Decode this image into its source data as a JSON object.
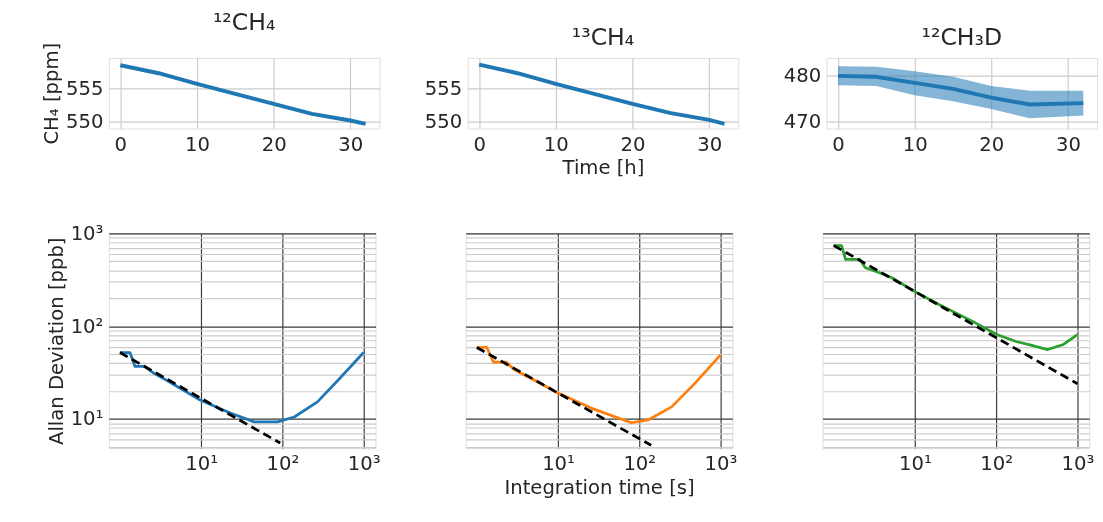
{
  "chart_data": [
    {
      "type": "line",
      "title": "¹²CH₄",
      "ylabel": "CH₄ [ppm]",
      "xlim": [
        -1.5,
        33.8
      ],
      "ylim": [
        549,
        559.6
      ],
      "xticks": [
        0,
        10,
        20,
        30
      ],
      "yticks": [
        550,
        555
      ],
      "grid": true,
      "series": [
        {
          "color": "#1f77b4",
          "x": [
            0,
            5,
            10,
            15,
            20,
            25,
            30,
            32
          ],
          "values": [
            558.5,
            557.3,
            555.7,
            554.2,
            552.7,
            551.2,
            550.2,
            549.7
          ]
        }
      ]
    },
    {
      "type": "line",
      "title": "¹³CH₄",
      "xlabel": "Time [h]",
      "xlim": [
        -1.5,
        33.8
      ],
      "ylim": [
        549,
        559.6
      ],
      "xticks": [
        0,
        10,
        20,
        30
      ],
      "yticks": [
        550,
        555
      ],
      "grid": true,
      "series": [
        {
          "color": "#1f77b4",
          "x": [
            0,
            5,
            10,
            15,
            20,
            25,
            30,
            32
          ],
          "values": [
            558.6,
            557.3,
            555.7,
            554.2,
            552.7,
            551.3,
            550.3,
            549.7
          ]
        }
      ]
    },
    {
      "type": "line",
      "title": "¹²CH₃D",
      "xlim": [
        -1.5,
        33.8
      ],
      "ylim": [
        468.6,
        483.9
      ],
      "xticks": [
        0,
        10,
        20,
        30
      ],
      "yticks": [
        470,
        480
      ],
      "grid": true,
      "series": [
        {
          "color": "#1f77b4",
          "x": [
            0,
            5,
            10,
            15,
            20,
            25,
            32
          ],
          "values": [
            480,
            479.8,
            478.5,
            477.2,
            475.3,
            473.8,
            474.1
          ],
          "lower": [
            478,
            477.8,
            475.8,
            474.5,
            472.8,
            470.8,
            471.4
          ],
          "upper": [
            482.1,
            482,
            481,
            479.8,
            477.8,
            476.8,
            476.8
          ]
        }
      ]
    },
    {
      "type": "line",
      "ylabel": "Allan Deviation [ppb]",
      "log": "xy",
      "xlim": [
        0.73,
        1400
      ],
      "ylim": [
        4.85,
        1000
      ],
      "grid": true,
      "xticks": [
        {
          "value": 10,
          "label": "10¹"
        },
        {
          "value": 100,
          "label": "10²"
        },
        {
          "value": 1000,
          "label": "10³"
        }
      ],
      "yticks": [
        {
          "value": 5,
          "label": null
        },
        {
          "value": 6,
          "label": null
        },
        {
          "value": 7,
          "label": null
        },
        {
          "value": 8,
          "label": null
        },
        {
          "value": 9,
          "label": null
        },
        {
          "value": 10,
          "label": "10¹"
        },
        {
          "value": 20,
          "label": null
        },
        {
          "value": 30,
          "label": null
        },
        {
          "value": 40,
          "label": null
        },
        {
          "value": 50,
          "label": null
        },
        {
          "value": 60,
          "label": null
        },
        {
          "value": 70,
          "label": null
        },
        {
          "value": 80,
          "label": null
        },
        {
          "value": 90,
          "label": null
        },
        {
          "value": 100,
          "label": "10²"
        },
        {
          "value": 200,
          "label": null
        },
        {
          "value": 300,
          "label": null
        },
        {
          "value": 400,
          "label": null
        },
        {
          "value": 500,
          "label": null
        },
        {
          "value": 600,
          "label": null
        },
        {
          "value": 700,
          "label": null
        },
        {
          "value": 800,
          "label": null
        },
        {
          "value": 900,
          "label": null
        },
        {
          "value": 1000,
          "label": "10³"
        }
      ],
      "series": [
        {
          "color": "#1f77b4",
          "x": [
            1,
            1.33,
            1.53,
            1.98,
            2.63,
            3.8,
            9.7,
            22.8,
            45,
            87,
            140,
            270,
            520,
            1000
          ],
          "values": [
            52,
            52,
            37,
            37,
            31,
            26,
            16,
            11.6,
            9.3,
            9.3,
            10.5,
            15.3,
            28,
            52
          ]
        },
        {
          "color": "#000000",
          "line_style": "dashed",
          "x": [
            1,
            94
          ],
          "values": [
            52,
            5.5
          ]
        }
      ]
    },
    {
      "type": "line",
      "xlabel": "Integration time [s]",
      "log": "xy",
      "xlim": [
        0.73,
        1400
      ],
      "ylim": [
        4.85,
        1000
      ],
      "grid": true,
      "tick_labels": "x",
      "xticks": [
        {
          "value": 10,
          "label": "10¹"
        },
        {
          "value": 100,
          "label": "10²"
        },
        {
          "value": 1000,
          "label": "10³"
        }
      ],
      "yticks": [
        {
          "value": 5,
          "label": null
        },
        {
          "value": 6,
          "label": null
        },
        {
          "value": 7,
          "label": null
        },
        {
          "value": 8,
          "label": null
        },
        {
          "value": 9,
          "label": null
        },
        10,
        {
          "value": 20,
          "label": null
        },
        {
          "value": 30,
          "label": null
        },
        {
          "value": 40,
          "label": null
        },
        {
          "value": 50,
          "label": null
        },
        {
          "value": 60,
          "label": null
        },
        {
          "value": 70,
          "label": null
        },
        {
          "value": 80,
          "label": null
        },
        {
          "value": 90,
          "label": null
        },
        100,
        {
          "value": 200,
          "label": null
        },
        {
          "value": 300,
          "label": null
        },
        {
          "value": 400,
          "label": null
        },
        {
          "value": 500,
          "label": null
        },
        {
          "value": 600,
          "label": null
        },
        {
          "value": 700,
          "label": null
        },
        {
          "value": 800,
          "label": null
        },
        {
          "value": 900,
          "label": null
        },
        1000
      ],
      "series": [
        {
          "color": "#ff7f0e",
          "x": [
            1,
            1.33,
            1.6,
            2.3,
            2.9,
            5.2,
            10,
            25.5,
            80,
            130,
            250,
            490,
            1000
          ],
          "values": [
            59,
            59,
            41,
            41,
            34,
            26,
            19,
            13.1,
            9.1,
            9.8,
            13.5,
            24.5,
            49
          ]
        },
        {
          "color": "#000000",
          "line_style": "dashed",
          "x": [
            1,
            140
          ],
          "values": [
            59,
            5.2
          ]
        }
      ]
    },
    {
      "type": "line",
      "log": "xy",
      "xlim": [
        0.73,
        1400
      ],
      "ylim": [
        4.85,
        1000
      ],
      "grid": true,
      "tick_labels": "x",
      "xticks": [
        {
          "value": 10,
          "label": "10¹"
        },
        {
          "value": 100,
          "label": "10²"
        },
        {
          "value": 1000,
          "label": "10³"
        }
      ],
      "yticks": [
        {
          "value": 5,
          "label": null
        },
        {
          "value": 6,
          "label": null
        },
        {
          "value": 7,
          "label": null
        },
        {
          "value": 8,
          "label": null
        },
        {
          "value": 9,
          "label": null
        },
        10,
        {
          "value": 20,
          "label": null
        },
        {
          "value": 30,
          "label": null
        },
        {
          "value": 40,
          "label": null
        },
        {
          "value": 50,
          "label": null
        },
        {
          "value": 60,
          "label": null
        },
        {
          "value": 70,
          "label": null
        },
        {
          "value": 80,
          "label": null
        },
        {
          "value": 90,
          "label": null
        },
        100,
        {
          "value": 200,
          "label": null
        },
        {
          "value": 300,
          "label": null
        },
        {
          "value": 400,
          "label": null
        },
        {
          "value": 500,
          "label": null
        },
        {
          "value": 600,
          "label": null
        },
        {
          "value": 700,
          "label": null
        },
        {
          "value": 800,
          "label": null
        },
        {
          "value": 900,
          "label": null
        },
        1000
      ],
      "series": [
        {
          "color": "#2ca02c",
          "x": [
            1,
            1.25,
            1.4,
            2.1,
            2.45,
            3.6,
            5.2,
            10,
            20,
            52,
            103,
            180,
            260,
            430,
            660,
            1000
          ],
          "values": [
            740,
            740,
            525,
            525,
            427,
            380,
            333,
            236,
            170,
            112,
            81,
            68,
            63,
            56,
            63,
            81
          ]
        },
        {
          "color": "#000000",
          "line_style": "dashed",
          "x": [
            1,
            1000
          ],
          "values": [
            740,
            24
          ]
        }
      ]
    }
  ]
}
